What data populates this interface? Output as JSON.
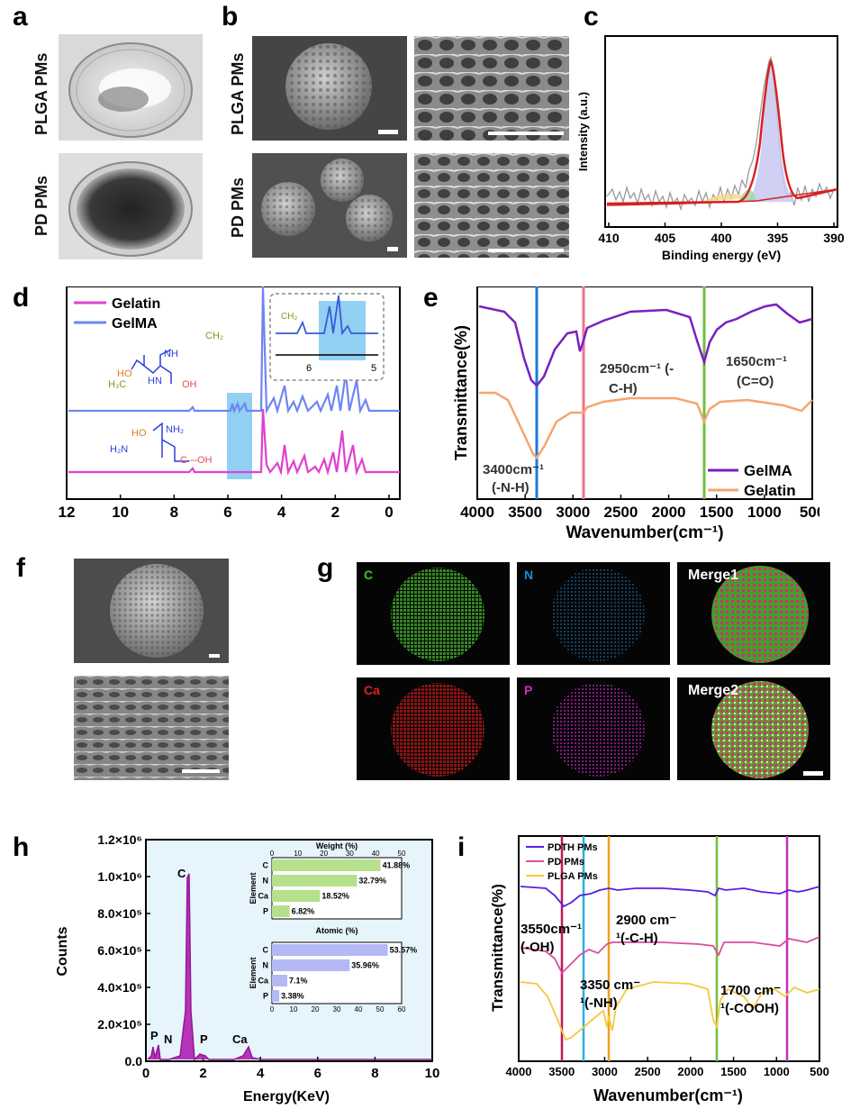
{
  "panels": {
    "a": {
      "letter": "a",
      "row1": "PLGA PMs",
      "row2": "PD PMs"
    },
    "b": {
      "letter": "b",
      "row1": "PLGA PMs",
      "row2": "PD PMs"
    },
    "c": {
      "letter": "c"
    },
    "d": {
      "letter": "d"
    },
    "e": {
      "letter": "e"
    },
    "f": {
      "letter": "f"
    },
    "g": {
      "letter": "g",
      "tiles": [
        "C",
        "N",
        "Merge1",
        "Ca",
        "P",
        "Merge2"
      ]
    },
    "h": {
      "letter": "h"
    },
    "i": {
      "letter": "i"
    }
  },
  "colors": {
    "gelatin": "#e040d0",
    "gelma": "#6f86f0",
    "ftir_gelma": "#7a1fbf",
    "ftir_gelatin": "#f5a56e",
    "pdth": "#5a1ee0",
    "pd": "#d94f9e",
    "plga": "#f5c842",
    "eds_bar1": "#b5e08c",
    "eds_bar2": "#b4b8f5"
  },
  "chart_data": [
    {
      "id": "c",
      "type": "line",
      "xlabel": "Binding energy (eV)",
      "ylabel": "Intensity (a.u.)",
      "xlim": [
        410,
        390
      ],
      "xticks": [
        "410",
        "405",
        "400",
        "395",
        "390"
      ],
      "peak_center": 395.5
    },
    {
      "id": "d",
      "type": "line",
      "xlim": [
        12,
        0
      ],
      "xticks": [
        "12",
        "10",
        "8",
        "6",
        "4",
        "2",
        "0"
      ],
      "series": [
        {
          "name": "Gelatin"
        },
        {
          "name": "GelMA"
        }
      ],
      "inset_xticks": [
        "6",
        "5"
      ]
    },
    {
      "id": "e",
      "type": "line",
      "xlabel": "Wavenumber(cm⁻¹)",
      "ylabel": "Transmittance(%)",
      "xlim": [
        4000,
        500
      ],
      "xticks": [
        "4000",
        "3500",
        "3000",
        "2500",
        "2000",
        "1500",
        "1000",
        "500"
      ],
      "series": [
        {
          "name": "GelMA"
        },
        {
          "name": "Gelatin"
        }
      ],
      "annotations": {
        "a1": "3400cm⁻¹",
        "a2": "(-N-H)",
        "b1": "2950cm⁻¹ (-",
        "b2": "C-H)",
        "c1": "1650cm⁻¹",
        "c2": "(C=O)"
      }
    },
    {
      "id": "h",
      "type": "line",
      "xlabel": "Energy(KeV)",
      "ylabel": "Counts",
      "xlim": [
        0,
        10
      ],
      "ylim": [
        0,
        1200000
      ],
      "xticks": [
        "0",
        "2",
        "4",
        "6",
        "8",
        "10"
      ],
      "yticks": [
        "0.0",
        "2.0×10⁵",
        "4.0×10⁵",
        "6.0×10⁵",
        "8.0×10⁵",
        "1.0×10⁶",
        "1.2×10⁶"
      ],
      "peak_labels": [
        "P",
        "N",
        "C",
        "P",
        "Ca"
      ],
      "inset_weight": {
        "type": "bar",
        "title": "Weight (%)",
        "ylabel": "Element",
        "categories": [
          "C",
          "N",
          "Ca",
          "P"
        ],
        "values": [
          41.88,
          32.79,
          18.52,
          6.82
        ],
        "labels": [
          "41.88%",
          "32.79%",
          "18.52%",
          "6.82%"
        ],
        "xticks": [
          "0",
          "10",
          "20",
          "30",
          "40",
          "50"
        ],
        "xlim": [
          0,
          50
        ]
      },
      "inset_atomic": {
        "type": "bar",
        "title": "Atomic (%)",
        "ylabel": "Element",
        "categories": [
          "C",
          "N",
          "Ca",
          "P"
        ],
        "values": [
          53.57,
          35.96,
          7.1,
          3.38
        ],
        "labels": [
          "53.57%",
          "35.96%",
          "7.1%",
          "3.38%"
        ],
        "xticks": [
          "0",
          "10",
          "20",
          "30",
          "40",
          "50",
          "60"
        ],
        "xlim": [
          0,
          60
        ]
      }
    },
    {
      "id": "i",
      "type": "line",
      "xlabel": "Wavenumber(cm⁻¹)",
      "ylabel": "Transmittance(%)",
      "xlim": [
        4000,
        500
      ],
      "xticks": [
        "4000",
        "3500",
        "3000",
        "2500",
        "2000",
        "1500",
        "1000",
        "500"
      ],
      "series": [
        {
          "name": "PDTH PMs"
        },
        {
          "name": "PD PMs"
        },
        {
          "name": "PLGA PMs"
        }
      ],
      "annotations": {
        "a1": "3550cm⁻¹",
        "a2": "(-OH)",
        "b1": "2900 cm⁻",
        "b2": "¹(-C-H)",
        "c1": "3350 cm⁻",
        "c2": "¹(-NH)",
        "d1": "1700 cm⁻",
        "d2": "¹(-COOH)"
      }
    }
  ]
}
